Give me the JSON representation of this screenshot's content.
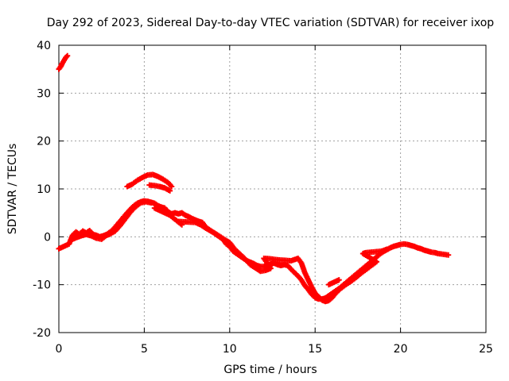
{
  "chart_data": {
    "type": "scatter",
    "title": "Day 292 of 2023, Sidereal Day-to-day VTEC variation (SDTVAR) for receiver ixop",
    "xlabel": "GPS time / hours",
    "ylabel": "SDTVAR / TECUs",
    "xlim": [
      0,
      25
    ],
    "ylim": [
      -20,
      40
    ],
    "xticks": [
      0,
      5,
      10,
      15,
      20,
      25
    ],
    "yticks": [
      -20,
      -10,
      0,
      10,
      20,
      30,
      40
    ],
    "grid": true,
    "marker": "plus",
    "series": [
      {
        "name": "main-trace",
        "color": "#ff0000",
        "points": [
          [
            0.0,
            -2.5
          ],
          [
            0.3,
            -2.0
          ],
          [
            0.6,
            -1.5
          ],
          [
            0.8,
            0.3
          ],
          [
            1.0,
            1.0
          ],
          [
            1.2,
            0.5
          ],
          [
            1.4,
            1.2
          ],
          [
            1.6,
            0.8
          ],
          [
            1.8,
            1.3
          ],
          [
            2.0,
            0.5
          ],
          [
            2.2,
            0.3
          ],
          [
            2.4,
            0.0
          ],
          [
            2.6,
            0.2
          ],
          [
            2.8,
            0.5
          ],
          [
            3.0,
            1.0
          ],
          [
            3.2,
            1.6
          ],
          [
            3.4,
            2.5
          ],
          [
            3.6,
            3.3
          ],
          [
            3.8,
            4.2
          ],
          [
            4.0,
            5.0
          ],
          [
            4.2,
            5.8
          ],
          [
            4.4,
            6.5
          ],
          [
            4.6,
            7.0
          ],
          [
            4.8,
            7.3
          ],
          [
            5.0,
            7.5
          ],
          [
            5.2,
            7.4
          ],
          [
            5.4,
            7.2
          ],
          [
            5.6,
            7.0
          ],
          [
            5.8,
            6.5
          ],
          [
            6.0,
            6.2
          ],
          [
            6.2,
            6.0
          ],
          [
            6.4,
            5.2
          ],
          [
            6.6,
            4.8
          ],
          [
            6.8,
            5.0
          ],
          [
            7.0,
            4.8
          ],
          [
            7.2,
            5.0
          ],
          [
            7.4,
            4.5
          ],
          [
            7.6,
            4.2
          ],
          [
            7.8,
            3.8
          ],
          [
            8.0,
            3.5
          ],
          [
            8.2,
            3.2
          ],
          [
            8.4,
            3.0
          ],
          [
            8.6,
            2.0
          ],
          [
            8.8,
            1.5
          ],
          [
            9.0,
            1.0
          ],
          [
            9.2,
            0.5
          ],
          [
            9.4,
            0.0
          ],
          [
            9.6,
            -0.5
          ],
          [
            9.8,
            -1.5
          ],
          [
            10.0,
            -2.0
          ],
          [
            10.2,
            -3.0
          ],
          [
            10.4,
            -3.5
          ],
          [
            10.6,
            -4.0
          ],
          [
            10.8,
            -4.5
          ],
          [
            11.0,
            -5.0
          ],
          [
            11.2,
            -5.3
          ],
          [
            11.4,
            -5.6
          ],
          [
            11.6,
            -6.0
          ],
          [
            11.8,
            -6.2
          ],
          [
            12.0,
            -6.2
          ],
          [
            12.2,
            -6.0
          ],
          [
            12.4,
            -5.7
          ],
          [
            12.6,
            -5.5
          ],
          [
            12.8,
            -5.8
          ],
          [
            13.0,
            -6.0
          ],
          [
            13.2,
            -5.8
          ],
          [
            13.4,
            -6.0
          ],
          [
            13.6,
            -6.8
          ],
          [
            13.8,
            -7.5
          ],
          [
            14.0,
            -8.2
          ],
          [
            14.2,
            -9.0
          ],
          [
            14.4,
            -10.2
          ],
          [
            14.6,
            -11.0
          ],
          [
            14.8,
            -12.0
          ],
          [
            15.0,
            -12.7
          ],
          [
            15.2,
            -13.0
          ],
          [
            15.4,
            -13.0
          ],
          [
            15.6,
            -12.8
          ],
          [
            15.8,
            -12.3
          ],
          [
            16.0,
            -11.8
          ],
          [
            16.2,
            -11.3
          ],
          [
            16.4,
            -10.8
          ],
          [
            16.6,
            -10.2
          ],
          [
            16.8,
            -9.6
          ],
          [
            17.0,
            -9.0
          ],
          [
            17.2,
            -8.4
          ],
          [
            17.4,
            -7.8
          ],
          [
            17.6,
            -7.2
          ],
          [
            17.8,
            -6.6
          ],
          [
            18.0,
            -6.0
          ],
          [
            18.2,
            -5.4
          ],
          [
            18.4,
            -4.8
          ],
          [
            18.6,
            -4.2
          ],
          [
            18.8,
            -3.6
          ],
          [
            19.0,
            -3.1
          ],
          [
            19.2,
            -2.7
          ],
          [
            19.4,
            -2.3
          ],
          [
            19.6,
            -2.0
          ],
          [
            19.8,
            -1.8
          ],
          [
            20.0,
            -1.6
          ],
          [
            20.2,
            -1.5
          ],
          [
            20.4,
            -1.6
          ],
          [
            20.6,
            -1.8
          ],
          [
            20.8,
            -2.0
          ],
          [
            21.0,
            -2.3
          ],
          [
            21.2,
            -2.5
          ],
          [
            21.4,
            -2.8
          ],
          [
            21.6,
            -3.0
          ],
          [
            21.8,
            -3.2
          ],
          [
            22.0,
            -3.3
          ],
          [
            22.2,
            -3.5
          ],
          [
            22.4,
            -3.6
          ],
          [
            22.6,
            -3.7
          ],
          [
            22.8,
            -3.8
          ]
        ]
      },
      {
        "name": "secondary-trace",
        "color": "#ff0000",
        "points": [
          [
            0.0,
            35.0
          ],
          [
            0.1,
            35.5
          ],
          [
            0.2,
            36.2
          ],
          [
            0.3,
            36.8
          ],
          [
            0.4,
            37.4
          ],
          [
            0.5,
            37.8
          ],
          [
            0.8,
            -0.5
          ],
          [
            1.0,
            -0.2
          ],
          [
            1.3,
            0.2
          ],
          [
            1.6,
            0.5
          ],
          [
            1.9,
            0.2
          ],
          [
            2.2,
            -0.3
          ],
          [
            2.5,
            -0.5
          ],
          [
            2.8,
            0.3
          ],
          [
            3.0,
            0.6
          ],
          [
            3.3,
            1.2
          ],
          [
            3.6,
            2.4
          ],
          [
            3.9,
            3.8
          ],
          [
            4.2,
            5.2
          ],
          [
            4.5,
            6.3
          ],
          [
            4.8,
            7.1
          ],
          [
            5.1,
            7.3
          ],
          [
            5.4,
            7.1
          ],
          [
            4.0,
            10.5
          ],
          [
            4.3,
            11.0
          ],
          [
            4.6,
            11.8
          ],
          [
            4.9,
            12.4
          ],
          [
            5.2,
            12.9
          ],
          [
            5.5,
            13.0
          ],
          [
            5.8,
            12.6
          ],
          [
            6.1,
            12.0
          ],
          [
            6.4,
            11.3
          ],
          [
            6.6,
            10.5
          ],
          [
            5.3,
            10.8
          ],
          [
            5.6,
            10.7
          ],
          [
            5.9,
            10.5
          ],
          [
            6.2,
            10.2
          ],
          [
            6.5,
            9.6
          ],
          [
            5.6,
            6.0
          ],
          [
            5.9,
            5.5
          ],
          [
            6.2,
            5.0
          ],
          [
            6.5,
            4.5
          ],
          [
            7.2,
            2.5
          ],
          [
            7.0,
            3.2
          ],
          [
            8.0,
            3.0
          ],
          [
            8.3,
            2.5
          ],
          [
            8.6,
            1.8
          ],
          [
            8.9,
            1.2
          ],
          [
            9.2,
            0.6
          ],
          [
            9.8,
            -0.8
          ],
          [
            10.0,
            -1.2
          ],
          [
            10.3,
            -2.6
          ],
          [
            10.6,
            -3.6
          ],
          [
            10.9,
            -4.6
          ],
          [
            11.2,
            -5.8
          ],
          [
            11.5,
            -6.5
          ],
          [
            11.8,
            -7.2
          ],
          [
            12.1,
            -7.0
          ],
          [
            12.4,
            -6.6
          ],
          [
            12.0,
            -4.5
          ],
          [
            12.4,
            -4.6
          ],
          [
            12.8,
            -4.8
          ],
          [
            13.2,
            -4.9
          ],
          [
            13.6,
            -5.0
          ],
          [
            14.0,
            -4.5
          ],
          [
            14.2,
            -5.5
          ],
          [
            14.4,
            -7.5
          ],
          [
            14.6,
            -9.0
          ],
          [
            14.8,
            -10.5
          ],
          [
            15.0,
            -11.8
          ],
          [
            15.2,
            -12.5
          ],
          [
            15.4,
            -13.2
          ],
          [
            15.6,
            -13.5
          ],
          [
            15.8,
            -13.3
          ],
          [
            16.0,
            -12.7
          ],
          [
            16.2,
            -11.8
          ],
          [
            16.5,
            -10.8
          ],
          [
            16.8,
            -10.0
          ],
          [
            17.1,
            -9.3
          ],
          [
            17.4,
            -8.5
          ],
          [
            17.7,
            -7.6
          ],
          [
            18.0,
            -6.8
          ],
          [
            18.3,
            -6.0
          ],
          [
            18.6,
            -5.2
          ],
          [
            17.8,
            -3.5
          ],
          [
            18.0,
            -3.3
          ],
          [
            18.3,
            -3.2
          ],
          [
            18.6,
            -3.1
          ],
          [
            18.9,
            -3.0
          ],
          [
            19.2,
            -2.6
          ],
          [
            15.8,
            -10.0
          ],
          [
            16.1,
            -9.5
          ],
          [
            16.4,
            -9.0
          ]
        ]
      }
    ]
  }
}
